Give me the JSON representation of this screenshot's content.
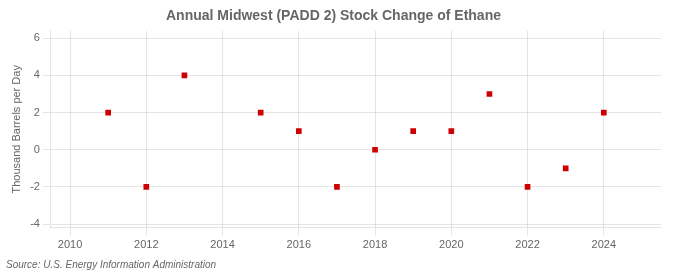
{
  "chart_data": {
    "type": "scatter",
    "title": "Annual Midwest (PADD 2) Stock Change of Ethane",
    "ylabel": "Thousand Barrels per Day",
    "source": "Source: U.S. Energy Information Administration",
    "x": [
      2011,
      2012,
      2013,
      2015,
      2016,
      2017,
      2018,
      2019,
      2020,
      2021,
      2022,
      2023,
      2024
    ],
    "values": [
      2,
      -2,
      4,
      2,
      1,
      -2,
      0,
      1,
      1,
      3,
      -2,
      -1,
      2
    ],
    "color": "#cc0000",
    "marker": "square",
    "xlim": [
      2009.5,
      2025.5
    ],
    "ylim": [
      -4.2,
      6.4
    ],
    "xticks": [
      2010,
      2012,
      2014,
      2016,
      2018,
      2020,
      2022,
      2024
    ],
    "yticks": [
      -4,
      -2,
      0,
      2,
      4,
      6
    ],
    "grid": true
  }
}
